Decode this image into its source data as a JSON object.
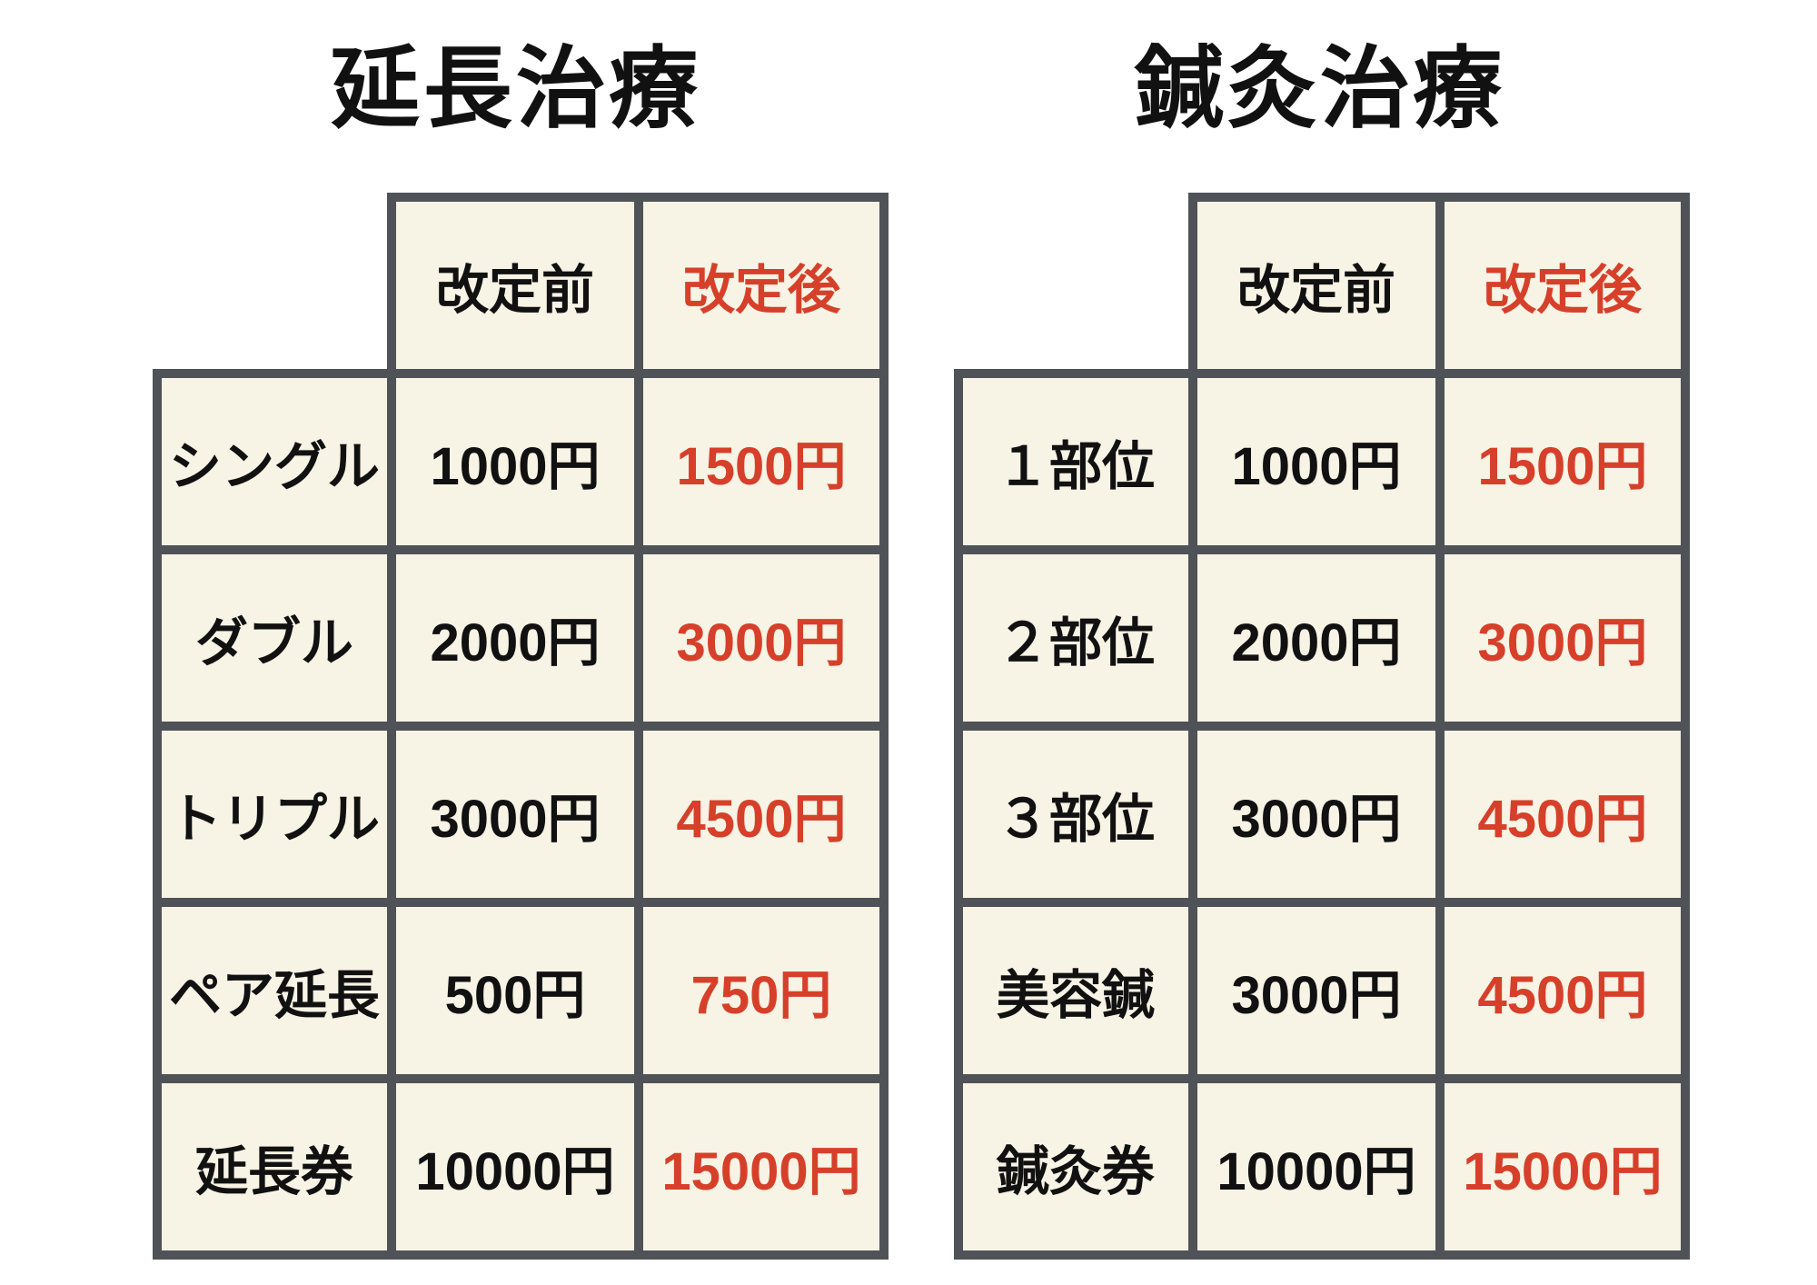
{
  "notice": {
    "language": "ja",
    "description_colors": {
      "accent_red": "#d6402a",
      "cell_background": "#f7f3e5",
      "grid_border": "#4f5257",
      "text_black": "#111111"
    }
  },
  "tables": [
    {
      "title": "延長治療",
      "col_before": "改定前",
      "col_after": "改定後",
      "rows": [
        {
          "label": "シングル",
          "before": "1000円",
          "after": "1500円"
        },
        {
          "label": "ダブル",
          "before": "2000円",
          "after": "3000円"
        },
        {
          "label": "トリプル",
          "before": "3000円",
          "after": "4500円"
        },
        {
          "label": "ペア延長",
          "before": "500円",
          "after": "750円"
        },
        {
          "label": "延長券",
          "before": "10000円",
          "after": "15000円"
        }
      ]
    },
    {
      "title": "鍼灸治療",
      "col_before": "改定前",
      "col_after": "改定後",
      "rows": [
        {
          "label": "１部位",
          "before": "1000円",
          "after": "1500円"
        },
        {
          "label": "２部位",
          "before": "2000円",
          "after": "3000円"
        },
        {
          "label": "３部位",
          "before": "3000円",
          "after": "4500円"
        },
        {
          "label": "美容鍼",
          "before": "3000円",
          "after": "4500円"
        },
        {
          "label": "鍼灸券",
          "before": "10000円",
          "after": "15000円"
        }
      ]
    }
  ]
}
